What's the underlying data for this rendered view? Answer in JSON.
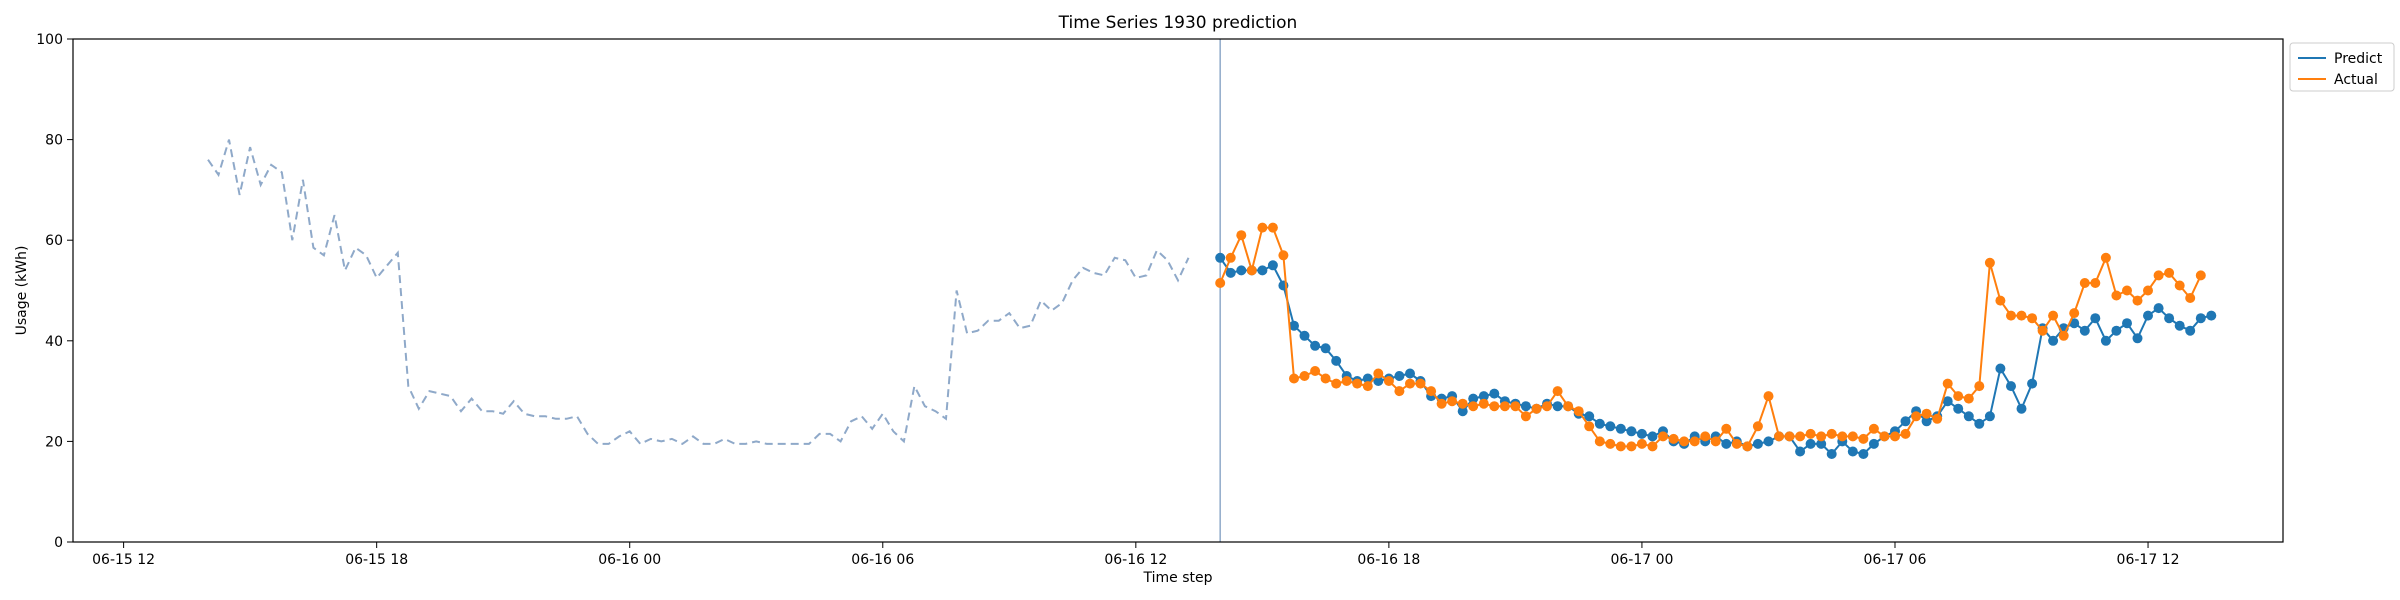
{
  "chart_data": {
    "type": "line",
    "title": "Time Series 1930 prediction",
    "xlabel": "Time step",
    "ylabel": "Usage (kWh)",
    "ylim": [
      0,
      100
    ],
    "y_ticks": [
      0,
      20,
      40,
      60,
      80,
      100
    ],
    "x_unit": "hours since 06-15 12:00",
    "xlim": [
      -1.2,
      51.2
    ],
    "x_ticks": [
      {
        "x": 0,
        "label": "06-15 12"
      },
      {
        "x": 6,
        "label": "06-15 18"
      },
      {
        "x": 12,
        "label": "06-16 00"
      },
      {
        "x": 18,
        "label": "06-16 06"
      },
      {
        "x": 24,
        "label": "06-16 12"
      },
      {
        "x": 30,
        "label": "06-16 18"
      },
      {
        "x": 36,
        "label": "06-17 00"
      },
      {
        "x": 42,
        "label": "06-17 06"
      },
      {
        "x": 48,
        "label": "06-17 12"
      }
    ],
    "grid": false,
    "legend_position": "outside-top-right",
    "forecast_start_x": 26,
    "history": {
      "x_start": 2,
      "step": 0.25,
      "color": "#8fa9c9",
      "style": "dashed",
      "values": [
        76,
        73,
        80,
        69,
        78.5,
        71,
        75,
        73.5,
        60,
        72,
        58.5,
        57,
        65,
        54,
        58.5,
        57,
        52.5,
        55,
        57.5,
        31,
        26.5,
        30,
        29.5,
        29,
        26,
        28.5,
        26,
        26,
        25.5,
        28,
        25.5,
        25,
        25,
        24.5,
        24.5,
        25,
        21.5,
        19.5,
        19.5,
        21,
        22,
        19.5,
        20.5,
        20,
        20.5,
        19.5,
        21,
        19.5,
        19.5,
        20.5,
        19.5,
        19.5,
        20,
        19.5,
        19.5,
        19.5,
        19.5,
        19.5,
        21.5,
        21.5,
        20,
        24,
        25,
        22.5,
        25.5,
        22,
        20,
        31,
        27,
        26,
        24.5,
        50,
        41.5,
        42,
        44,
        44,
        45.5,
        42.5,
        43,
        48,
        46,
        47.5,
        52,
        54.5,
        53.5,
        53,
        56.5,
        56,
        52.5,
        53,
        58,
        56,
        52,
        56.5
      ]
    },
    "series": [
      {
        "name": "Predict",
        "color": "#1f77b4",
        "x_start": 26,
        "step": 0.25,
        "values": [
          56.5,
          53.5,
          54,
          54,
          54,
          55,
          51,
          43,
          41,
          39,
          38.5,
          36,
          33,
          32,
          32.5,
          32,
          32.5,
          33,
          33.5,
          32,
          29,
          28.5,
          29,
          26,
          28.5,
          29,
          29.5,
          28,
          27.5,
          27,
          26.5,
          27.5,
          27,
          27,
          25.5,
          25,
          23.5,
          23,
          22.5,
          22,
          21.5,
          21,
          22,
          20,
          19.5,
          21,
          20,
          21,
          19.5,
          20,
          19,
          19.5,
          20,
          21,
          21,
          18,
          19.5,
          19.5,
          17.5,
          20,
          18,
          17.5,
          19.5,
          21,
          22,
          24,
          26,
          24,
          25,
          28,
          26.5,
          25,
          23.5,
          25,
          34.5,
          31,
          26.5,
          31.5,
          42.5,
          40,
          42.5,
          43.5,
          42,
          44.5,
          40,
          42,
          43.5,
          40.5,
          45,
          46.5,
          44.5,
          43,
          42,
          44.5,
          45
        ]
      },
      {
        "name": "Actual",
        "color": "#ff7f0e",
        "x_start": 26,
        "step": 0.25,
        "values": [
          51.5,
          56.5,
          61,
          54,
          62.5,
          62.5,
          57,
          32.5,
          33,
          34,
          32.5,
          31.5,
          32,
          31.5,
          31,
          33.5,
          32,
          30,
          31.5,
          31.5,
          30,
          27.5,
          28,
          27.5,
          27,
          27.5,
          27,
          27,
          27,
          25,
          26.5,
          27,
          30,
          27,
          26,
          23,
          20,
          19.5,
          19,
          19,
          19.5,
          19,
          21,
          20.5,
          20,
          20,
          21,
          20,
          22.5,
          19.5,
          19,
          23,
          29,
          21,
          21,
          21,
          21.5,
          21,
          21.5,
          21,
          21,
          20.5,
          22.5,
          21,
          21,
          21.5,
          25,
          25.5,
          24.5,
          31.5,
          29,
          28.5,
          31,
          55.5,
          48,
          45,
          45,
          44.5,
          42,
          45,
          41,
          45.5,
          51.5,
          51.5,
          56.5,
          49,
          50,
          48,
          50,
          53,
          53.5,
          51,
          48.5,
          53
        ]
      }
    ]
  }
}
